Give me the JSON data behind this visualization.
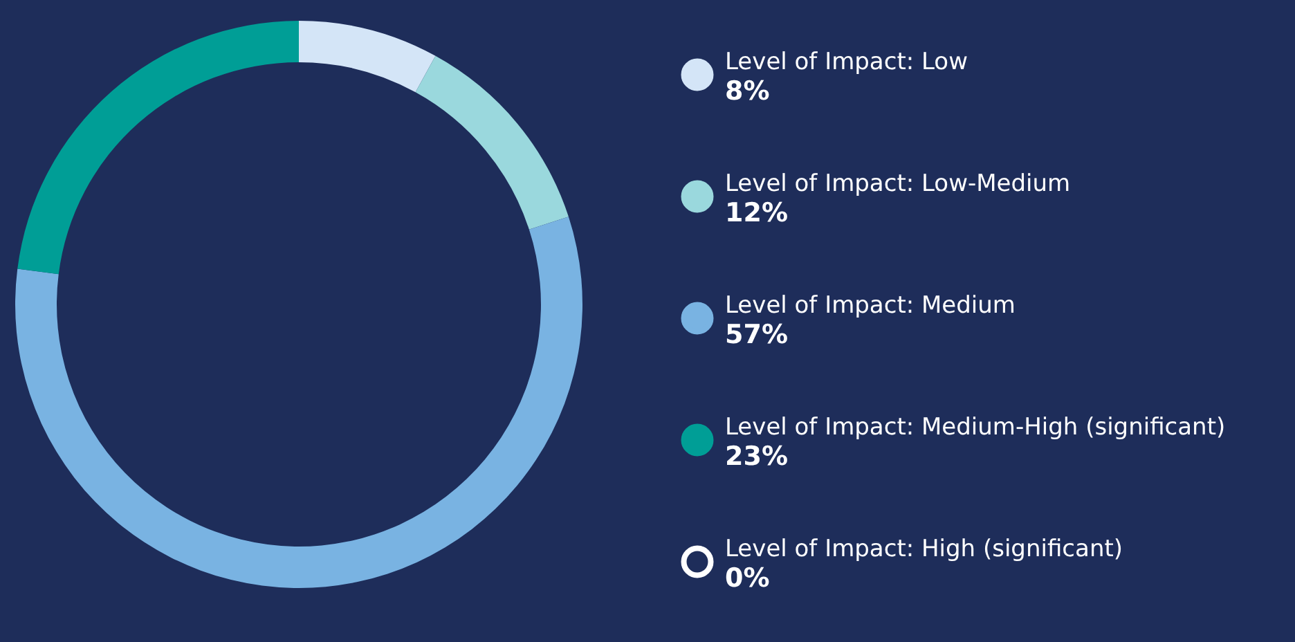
{
  "chart_data": {
    "type": "donut",
    "categories": [
      "Level of Impact: Low",
      "Level of Impact: Low-Medium",
      "Level of Impact: Medium",
      "Level of Impact: Medium-High (significant)",
      "Level of Impact: High (significant)"
    ],
    "values": [
      8,
      12,
      57,
      23,
      0
    ],
    "colors": [
      "#d4e5f7",
      "#9ad8dd",
      "#79b3e2",
      "#009e96",
      "#ffffff"
    ],
    "value_labels": [
      "8%",
      "12%",
      "57%",
      "23%",
      "0%"
    ],
    "legend": "right"
  }
}
